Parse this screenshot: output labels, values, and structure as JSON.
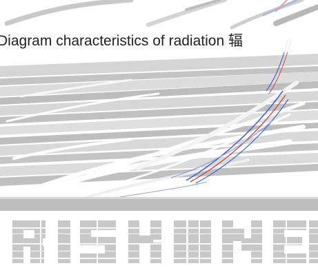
{
  "caption": {
    "text": "Diagram characteristics of radiation 辐"
  },
  "colors": {
    "background": "#ffffff",
    "stripe_gray": "#b8b8b8",
    "stripe_light": "#dcdcdc",
    "band_gray": "#bdbdbd",
    "wordmark_gray": "#c8c8c8",
    "accent_blue": "#4a63c9",
    "accent_red": "#c94a4a",
    "text": "#1f1f1f"
  },
  "graphic": {
    "kind": "distorted-scanline-image",
    "description": "",
    "icon": "watermark-wordmark-icon"
  }
}
